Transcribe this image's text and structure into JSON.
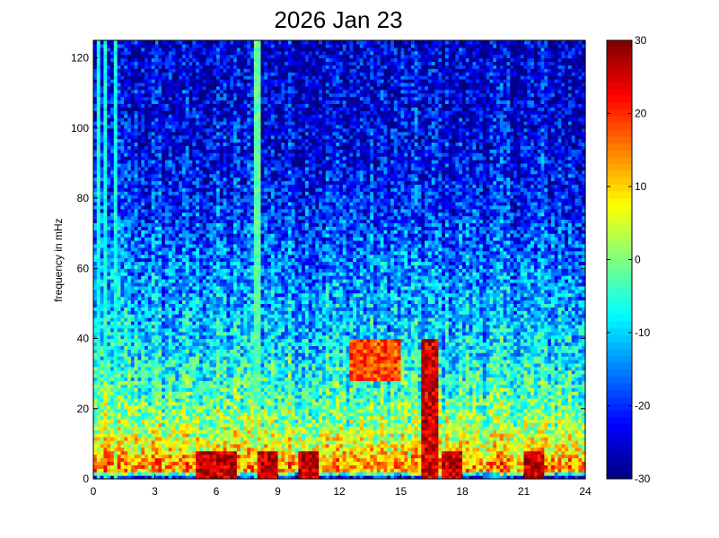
{
  "chart_data": {
    "type": "heatmap",
    "title": "2026 Jan 23",
    "xlabel": "",
    "ylabel": "frequency in mHz",
    "x_ticks": [
      0,
      3,
      6,
      9,
      12,
      15,
      18,
      21,
      24
    ],
    "y_ticks": [
      0,
      20,
      40,
      60,
      80,
      100,
      120
    ],
    "xlim": [
      0,
      24
    ],
    "ylim": [
      0,
      125
    ],
    "colorbar": {
      "colormap": "jet",
      "clim": [
        -30,
        30
      ],
      "ticks": [
        30,
        20,
        10,
        0,
        -10,
        -20,
        -30
      ]
    },
    "grid": false,
    "time_bins": 144,
    "freq_bins": 125,
    "background_profile": {
      "freq_mhz": [
        0,
        1,
        2,
        4,
        8,
        15,
        25,
        40,
        60,
        80,
        100,
        125
      ],
      "level": [
        -18,
        -22,
        12,
        14,
        8,
        2,
        -4,
        -10,
        -15,
        -21,
        -24,
        -25
      ]
    },
    "features": [
      {
        "label": "vertical stripes near start",
        "t_hours": [
          0.3,
          0.6,
          1.1
        ],
        "level": -6
      },
      {
        "label": "narrow line",
        "t_hours": [
          8.0
        ],
        "level": -2
      },
      {
        "label": "broadband burst",
        "t_hours": [
          16.0,
          16.8
        ],
        "freq_mhz": [
          0,
          40
        ],
        "level": 25
      },
      {
        "label": "mid-frequency patch",
        "t_hours": [
          12.5,
          15.0
        ],
        "freq_mhz": [
          28,
          40
        ],
        "level": 18
      },
      {
        "label": "low-frequency bursts",
        "t_hours": [
          5.5,
          6.5,
          8.5,
          10.5,
          17.5,
          21.5
        ],
        "freq_mhz": [
          0,
          8
        ],
        "level": 26
      }
    ]
  }
}
